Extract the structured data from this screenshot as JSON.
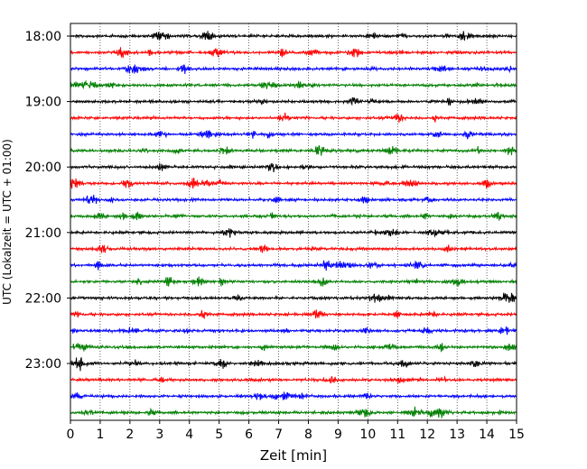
{
  "chart_data": {
    "type": "line",
    "title": "",
    "xlabel": "Zeit  [min]",
    "ylabel": "UTC (Lokalzeit = UTC + 01:00)",
    "xlim": [
      0,
      15
    ],
    "x_ticks": [
      "0",
      "1",
      "2",
      "3",
      "4",
      "5",
      "6",
      "7",
      "8",
      "9",
      "10",
      "11",
      "12",
      "13",
      "14",
      "15"
    ],
    "y_tick_labels": [
      "18:00",
      "19:00",
      "20:00",
      "21:00",
      "22:00",
      "23:00"
    ],
    "grid": "vertical dotted",
    "series_colors": [
      "#000000",
      "#ff0000",
      "#0000ff",
      "#007f00"
    ],
    "traces": [
      {
        "start": "18:00",
        "color": "#000000"
      },
      {
        "start": "18:15",
        "color": "#ff0000"
      },
      {
        "start": "18:30",
        "color": "#0000ff"
      },
      {
        "start": "18:45",
        "color": "#007f00"
      },
      {
        "start": "19:00",
        "color": "#000000"
      },
      {
        "start": "19:15",
        "color": "#ff0000"
      },
      {
        "start": "19:30",
        "color": "#0000ff"
      },
      {
        "start": "19:45",
        "color": "#007f00"
      },
      {
        "start": "20:00",
        "color": "#000000"
      },
      {
        "start": "20:15",
        "color": "#ff0000"
      },
      {
        "start": "20:30",
        "color": "#0000ff"
      },
      {
        "start": "20:45",
        "color": "#007f00"
      },
      {
        "start": "21:00",
        "color": "#000000"
      },
      {
        "start": "21:15",
        "color": "#ff0000"
      },
      {
        "start": "21:30",
        "color": "#0000ff"
      },
      {
        "start": "21:45",
        "color": "#007f00"
      },
      {
        "start": "22:00",
        "color": "#000000"
      },
      {
        "start": "22:15",
        "color": "#ff0000"
      },
      {
        "start": "22:30",
        "color": "#0000ff"
      },
      {
        "start": "22:45",
        "color": "#007f00"
      },
      {
        "start": "23:00",
        "color": "#000000"
      },
      {
        "start": "23:15",
        "color": "#ff0000"
      },
      {
        "start": "23:30",
        "color": "#0000ff"
      },
      {
        "start": "23:45",
        "color": "#007f00"
      }
    ]
  }
}
